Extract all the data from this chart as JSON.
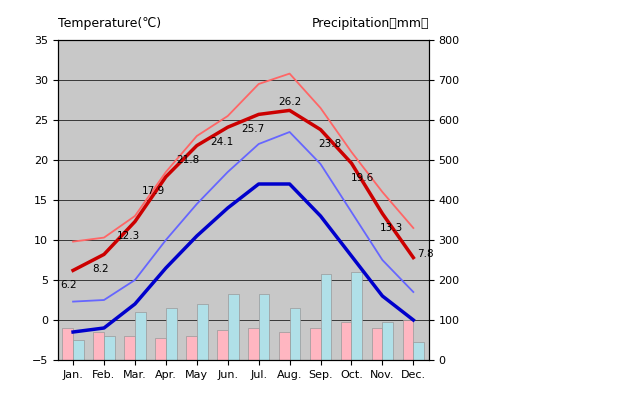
{
  "months": [
    "Jan.",
    "Feb.",
    "Mar.",
    "Apr.",
    "May",
    "Jun.",
    "Jul.",
    "Aug.",
    "Sep.",
    "Oct.",
    "Nov.",
    "Dec."
  ],
  "artvin_high": [
    6.2,
    8.2,
    12.3,
    17.9,
    21.8,
    24.1,
    25.7,
    26.2,
    23.8,
    19.6,
    13.3,
    7.8
  ],
  "artvin_low": [
    -1.5,
    -1.0,
    2.0,
    6.5,
    10.5,
    14.0,
    17.0,
    17.0,
    13.0,
    8.0,
    3.0,
    0.0
  ],
  "tokyo_high": [
    9.8,
    10.3,
    13.0,
    18.5,
    23.0,
    25.5,
    29.5,
    30.8,
    26.5,
    21.0,
    16.0,
    11.5
  ],
  "tokyo_low": [
    2.3,
    2.5,
    5.0,
    10.0,
    14.5,
    18.5,
    22.0,
    23.5,
    19.5,
    13.5,
    7.5,
    3.5
  ],
  "artvin_precip_mm": [
    80,
    70,
    60,
    55,
    60,
    75,
    80,
    70,
    80,
    95,
    80,
    100
  ],
  "tokyo_precip_mm": [
    50,
    60,
    120,
    130,
    140,
    165,
    165,
    130,
    215,
    220,
    95,
    45
  ],
  "artvin_high_labels": [
    "6.2",
    "8.2",
    "12.3",
    "17.9",
    "21.8",
    "24.1",
    "25.7",
    "26.2",
    "23.8",
    "19.6",
    "13.3",
    "7.8"
  ],
  "bg_color": "#c8c8c8",
  "artvin_high_color": "#cc0000",
  "artvin_low_color": "#0000cc",
  "tokyo_high_color": "#ff6666",
  "tokyo_low_color": "#6666ff",
  "artvin_precip_color": "#ffb6c1",
  "tokyo_precip_color": "#b0e0e8",
  "title_left": "Temperature(℃)",
  "title_right": "Precipitation（mm）",
  "ylim_temp": [
    -5,
    35
  ],
  "ylim_precip": [
    0,
    800
  ],
  "temp_ticks": [
    -5,
    0,
    5,
    10,
    15,
    20,
    25,
    30,
    35
  ],
  "precip_ticks": [
    0,
    100,
    200,
    300,
    400,
    500,
    600,
    700,
    800
  ]
}
